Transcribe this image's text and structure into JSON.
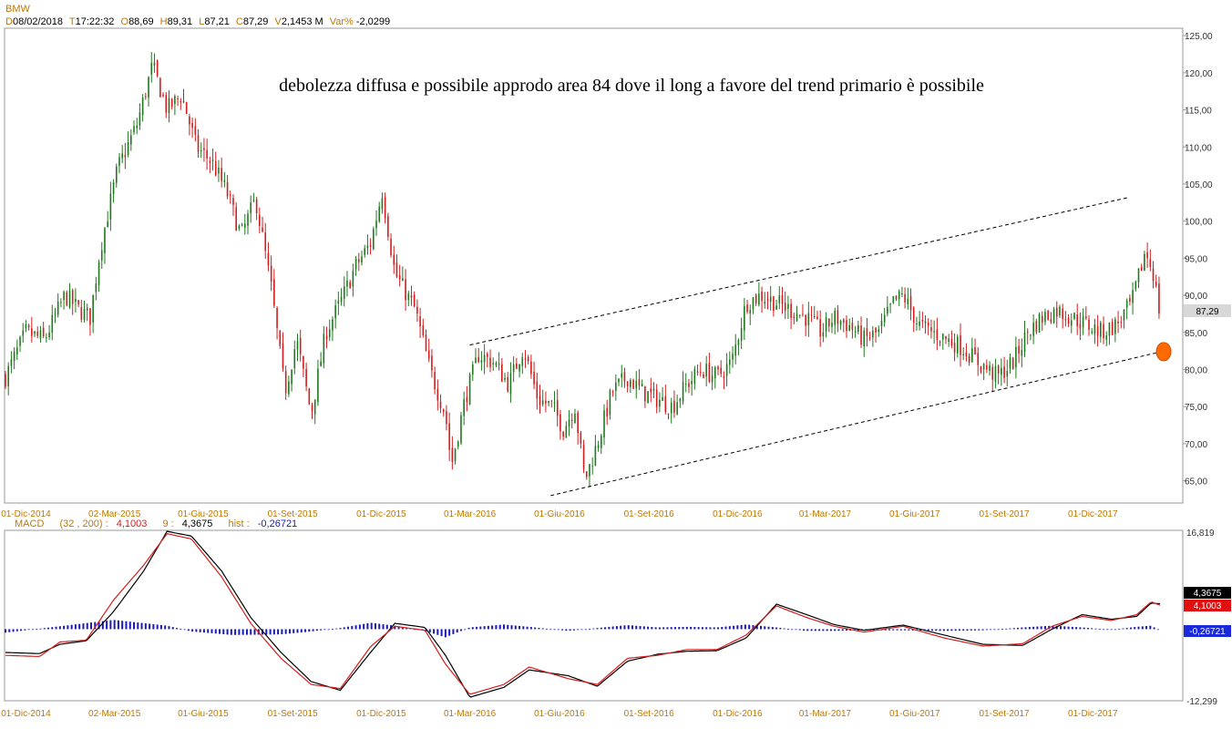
{
  "header": {
    "symbol": "BMW",
    "d_label": "D",
    "d_value": "08/02/2018",
    "t_label": "T",
    "t_value": "17:22:32",
    "o_label": "O",
    "o_value": "88,69",
    "h_label": "H",
    "h_value": "89,31",
    "l_label": "L",
    "l_value": "87,21",
    "c_label": "C",
    "c_value": "87,29",
    "v_label": "V",
    "v_value": "2,1453 M",
    "var_label": "Var%",
    "var_value": "-2,0299"
  },
  "macd_header": {
    "name": "MACD",
    "params": "(32 , 200) :",
    "macd_value": "4,1003",
    "signal_period": "9 :",
    "signal_value": "4,3675",
    "hist_label": "hist :",
    "hist_value": "-0,26721"
  },
  "annotation": "debolezza diffusa e possibile approdo area 84 dove il long a favore del trend primario è possibile",
  "price_tag": "87,29",
  "macd_tags": {
    "signal": "4,3675",
    "macd": "4,1003",
    "hist": "-0,26721"
  },
  "macd_axis": {
    "top": "16,819",
    "bottom": "-12,299"
  },
  "colors": {
    "up": "#1f7a1f",
    "down": "#d21e1e",
    "macd_line": "#d21e1e",
    "signal_line": "#000000",
    "hist": "#1a1ab8",
    "axis_text": "#c07800",
    "target_marker": "#ff6a00"
  },
  "chart_data": [
    {
      "type": "candlestick",
      "title": "BMW",
      "ylim": [
        62,
        126
      ],
      "yticks": [
        "65,00",
        "70,00",
        "75,00",
        "80,00",
        "85,00",
        "90,00",
        "95,00",
        "100,00",
        "105,00",
        "110,00",
        "115,00",
        "120,00",
        "125,00"
      ],
      "xticks": [
        "01-Dic-2014",
        "02-Mar-2015",
        "01-Giu-2015",
        "01-Set-2015",
        "01-Dic-2015",
        "01-Mar-2016",
        "01-Giu-2016",
        "01-Set-2016",
        "01-Dic-2016",
        "01-Mar-2017",
        "01-Giu-2017",
        "01-Set-2017",
        "01-Dic-2017"
      ],
      "x_range": [
        "2014-11-10",
        "2018-02-08"
      ],
      "price_path": [
        [
          "2014-11-10",
          79
        ],
        [
          "2014-12-01",
          85
        ],
        [
          "2014-12-20",
          84
        ],
        [
          "2015-01-10",
          90
        ],
        [
          "2015-01-25",
          88
        ],
        [
          "2015-02-05",
          87
        ],
        [
          "2015-02-15",
          96
        ],
        [
          "2015-03-05",
          107
        ],
        [
          "2015-03-25",
          113
        ],
        [
          "2015-04-10",
          121
        ],
        [
          "2015-04-25",
          115
        ],
        [
          "2015-05-10",
          117
        ],
        [
          "2015-05-25",
          110
        ],
        [
          "2015-06-10",
          108
        ],
        [
          "2015-06-25",
          104
        ],
        [
          "2015-07-10",
          98
        ],
        [
          "2015-07-25",
          103
        ],
        [
          "2015-08-10",
          91
        ],
        [
          "2015-08-24",
          77
        ],
        [
          "2015-09-05",
          84
        ],
        [
          "2015-09-20",
          74
        ],
        [
          "2015-10-05",
          85
        ],
        [
          "2015-10-20",
          89
        ],
        [
          "2015-11-05",
          94
        ],
        [
          "2015-11-20",
          97
        ],
        [
          "2015-12-02",
          104
        ],
        [
          "2015-12-15",
          93
        ],
        [
          "2016-01-05",
          88
        ],
        [
          "2016-01-20",
          80
        ],
        [
          "2016-02-05",
          74
        ],
        [
          "2016-02-11",
          67
        ],
        [
          "2016-02-25",
          76
        ],
        [
          "2016-03-10",
          82
        ],
        [
          "2016-03-25",
          81
        ],
        [
          "2016-04-10",
          78
        ],
        [
          "2016-04-25",
          83
        ],
        [
          "2016-05-10",
          76
        ],
        [
          "2016-05-25",
          75
        ],
        [
          "2016-06-05",
          72
        ],
        [
          "2016-06-17",
          75
        ],
        [
          "2016-06-27",
          65
        ],
        [
          "2016-07-10",
          70
        ],
        [
          "2016-07-25",
          77
        ],
        [
          "2016-08-10",
          79
        ],
        [
          "2016-08-25",
          77
        ],
        [
          "2016-09-10",
          76
        ],
        [
          "2016-09-25",
          75
        ],
        [
          "2016-10-10",
          78
        ],
        [
          "2016-10-25",
          80
        ],
        [
          "2016-11-10",
          79
        ],
        [
          "2016-11-25",
          81
        ],
        [
          "2016-12-10",
          89
        ],
        [
          "2016-12-25",
          90
        ],
        [
          "2017-01-10",
          89
        ],
        [
          "2017-01-25",
          88
        ],
        [
          "2017-02-10",
          87
        ],
        [
          "2017-02-25",
          85
        ],
        [
          "2017-03-10",
          87
        ],
        [
          "2017-03-25",
          86
        ],
        [
          "2017-04-10",
          84
        ],
        [
          "2017-04-25",
          85
        ],
        [
          "2017-05-10",
          89
        ],
        [
          "2017-05-20",
          90
        ],
        [
          "2017-06-05",
          86
        ],
        [
          "2017-06-20",
          85
        ],
        [
          "2017-07-05",
          84
        ],
        [
          "2017-07-20",
          83
        ],
        [
          "2017-08-05",
          81
        ],
        [
          "2017-08-25",
          79
        ],
        [
          "2017-09-10",
          81
        ],
        [
          "2017-09-25",
          85
        ],
        [
          "2017-10-10",
          87
        ],
        [
          "2017-10-25",
          88
        ],
        [
          "2017-11-10",
          87
        ],
        [
          "2017-11-25",
          86
        ],
        [
          "2017-12-10",
          85
        ],
        [
          "2017-12-25",
          86
        ],
        [
          "2018-01-10",
          89
        ],
        [
          "2018-01-24",
          96
        ],
        [
          "2018-02-01",
          93
        ],
        [
          "2018-02-08",
          87.3
        ]
      ],
      "trendlines": [
        {
          "from": [
            "2016-03-01",
            83.3
          ],
          "to": [
            "2018-01-07",
            103.2
          ]
        },
        {
          "from": [
            "2016-05-23",
            63.0
          ],
          "to": [
            "2018-02-06",
            82.3
          ]
        }
      ],
      "target": {
        "x": "2018-02-08",
        "y": 82.4
      }
    },
    {
      "type": "line",
      "title": "MACD",
      "ylim": [
        -12.299,
        16.819
      ],
      "series": [
        {
          "name": "MACD",
          "values": [
            [
              "2014-11-10",
              -4.5
            ],
            [
              "2014-12-15",
              -4.7
            ],
            [
              "2015-01-05",
              -2.2
            ],
            [
              "2015-02-01",
              -1.9
            ],
            [
              "2015-03-01",
              5
            ],
            [
              "2015-04-01",
              11
            ],
            [
              "2015-04-25",
              16.4
            ],
            [
              "2015-05-20",
              15.5
            ],
            [
              "2015-06-20",
              9
            ],
            [
              "2015-07-20",
              1
            ],
            [
              "2015-08-20",
              -5
            ],
            [
              "2015-09-20",
              -9.5
            ],
            [
              "2015-10-20",
              -10.2
            ],
            [
              "2015-11-20",
              -3
            ],
            [
              "2015-12-15",
              0.5
            ],
            [
              "2016-01-15",
              -0.2
            ],
            [
              "2016-02-05",
              -6
            ],
            [
              "2016-03-01",
              -11.2
            ],
            [
              "2016-04-05",
              -9.5
            ],
            [
              "2016-05-01",
              -6.5
            ],
            [
              "2016-06-10",
              -8.5
            ],
            [
              "2016-07-10",
              -9.5
            ],
            [
              "2016-08-10",
              -5
            ],
            [
              "2016-09-10",
              -4.5
            ],
            [
              "2016-10-10",
              -3.5
            ],
            [
              "2016-11-10",
              -3.5
            ],
            [
              "2016-12-10",
              -1
            ],
            [
              "2017-01-10",
              4
            ],
            [
              "2017-02-10",
              2
            ],
            [
              "2017-03-10",
              0.5
            ],
            [
              "2017-04-10",
              -0.5
            ],
            [
              "2017-05-20",
              0.5
            ],
            [
              "2017-07-01",
              -1.5
            ],
            [
              "2017-08-10",
              -2.9
            ],
            [
              "2017-09-20",
              -2.5
            ],
            [
              "2017-10-20",
              0.5
            ],
            [
              "2017-11-20",
              2.2
            ],
            [
              "2017-12-20",
              1.5
            ],
            [
              "2018-01-15",
              2.5
            ],
            [
              "2018-01-30",
              4.7
            ],
            [
              "2018-02-08",
              4.1
            ]
          ]
        },
        {
          "name": "Signal",
          "values": [
            [
              "2014-11-10",
              -4.0
            ],
            [
              "2014-12-15",
              -4.2
            ],
            [
              "2015-01-05",
              -2.6
            ],
            [
              "2015-02-01",
              -2.0
            ],
            [
              "2015-03-01",
              3
            ],
            [
              "2015-04-01",
              10
            ],
            [
              "2015-04-25",
              16.8
            ],
            [
              "2015-05-20",
              16.0
            ],
            [
              "2015-06-20",
              10
            ],
            [
              "2015-07-20",
              2
            ],
            [
              "2015-08-20",
              -4
            ],
            [
              "2015-09-20",
              -9
            ],
            [
              "2015-10-20",
              -10.5
            ],
            [
              "2015-11-20",
              -4
            ],
            [
              "2015-12-15",
              1
            ],
            [
              "2016-01-15",
              0.3
            ],
            [
              "2016-02-05",
              -4.5
            ],
            [
              "2016-03-01",
              -11.7
            ],
            [
              "2016-04-05",
              -10
            ],
            [
              "2016-05-01",
              -7
            ],
            [
              "2016-06-10",
              -8
            ],
            [
              "2016-07-10",
              -9.8
            ],
            [
              "2016-08-10",
              -5.5
            ],
            [
              "2016-09-10",
              -4.3
            ],
            [
              "2016-10-10",
              -3.8
            ],
            [
              "2016-11-10",
              -3.7
            ],
            [
              "2016-12-10",
              -1.5
            ],
            [
              "2017-01-10",
              4.3
            ],
            [
              "2017-02-10",
              2.5
            ],
            [
              "2017-03-10",
              0.8
            ],
            [
              "2017-04-10",
              -0.2
            ],
            [
              "2017-05-20",
              0.7
            ],
            [
              "2017-07-01",
              -1
            ],
            [
              "2017-08-10",
              -2.6
            ],
            [
              "2017-09-20",
              -2.8
            ],
            [
              "2017-10-20",
              0
            ],
            [
              "2017-11-20",
              2.5
            ],
            [
              "2017-12-20",
              1.7
            ],
            [
              "2018-01-15",
              2.2
            ],
            [
              "2018-01-30",
              4.5
            ],
            [
              "2018-02-08",
              4.37
            ]
          ]
        },
        {
          "name": "hist",
          "type": "bar",
          "values": [
            [
              "2014-11-10",
              -0.6
            ],
            [
              "2015-01-05",
              0.5
            ],
            [
              "2015-03-01",
              1.6
            ],
            [
              "2015-04-25",
              0.6
            ],
            [
              "2015-05-20",
              -0.4
            ],
            [
              "2015-07-01",
              -1.0
            ],
            [
              "2015-08-20",
              -0.9
            ],
            [
              "2015-09-20",
              -0.4
            ],
            [
              "2015-10-20",
              0.2
            ],
            [
              "2015-11-20",
              1.1
            ],
            [
              "2015-12-15",
              0.6
            ],
            [
              "2016-01-15",
              -0.3
            ],
            [
              "2016-02-05",
              -1.4
            ],
            [
              "2016-03-01",
              0.3
            ],
            [
              "2016-04-05",
              0.8
            ],
            [
              "2016-05-01",
              0.4
            ],
            [
              "2016-06-10",
              -0.3
            ],
            [
              "2016-07-10",
              0.2
            ],
            [
              "2016-08-10",
              0.7
            ],
            [
              "2016-09-10",
              0.3
            ],
            [
              "2016-10-10",
              0.4
            ],
            [
              "2016-11-10",
              0.3
            ],
            [
              "2016-12-10",
              0.8
            ],
            [
              "2017-01-10",
              0.3
            ],
            [
              "2017-02-10",
              -0.3
            ],
            [
              "2017-03-10",
              -0.3
            ],
            [
              "2017-04-10",
              -0.2
            ],
            [
              "2017-05-20",
              -0.2
            ],
            [
              "2017-07-01",
              -0.3
            ],
            [
              "2017-08-10",
              -0.2
            ],
            [
              "2017-09-20",
              0.3
            ],
            [
              "2017-10-20",
              0.6
            ],
            [
              "2017-11-20",
              0.3
            ],
            [
              "2017-12-20",
              -0.1
            ],
            [
              "2018-01-15",
              0.4
            ],
            [
              "2018-01-30",
              0.6
            ],
            [
              "2018-02-08",
              -0.27
            ]
          ]
        }
      ],
      "xticks": [
        "01-Dic-2014",
        "02-Mar-2015",
        "01-Giu-2015",
        "01-Set-2015",
        "01-Dic-2015",
        "01-Mar-2016",
        "01-Giu-2016",
        "01-Set-2016",
        "01-Dic-2016",
        "01-Mar-2017",
        "01-Giu-2017",
        "01-Set-2017",
        "01-Dic-2017"
      ]
    }
  ]
}
